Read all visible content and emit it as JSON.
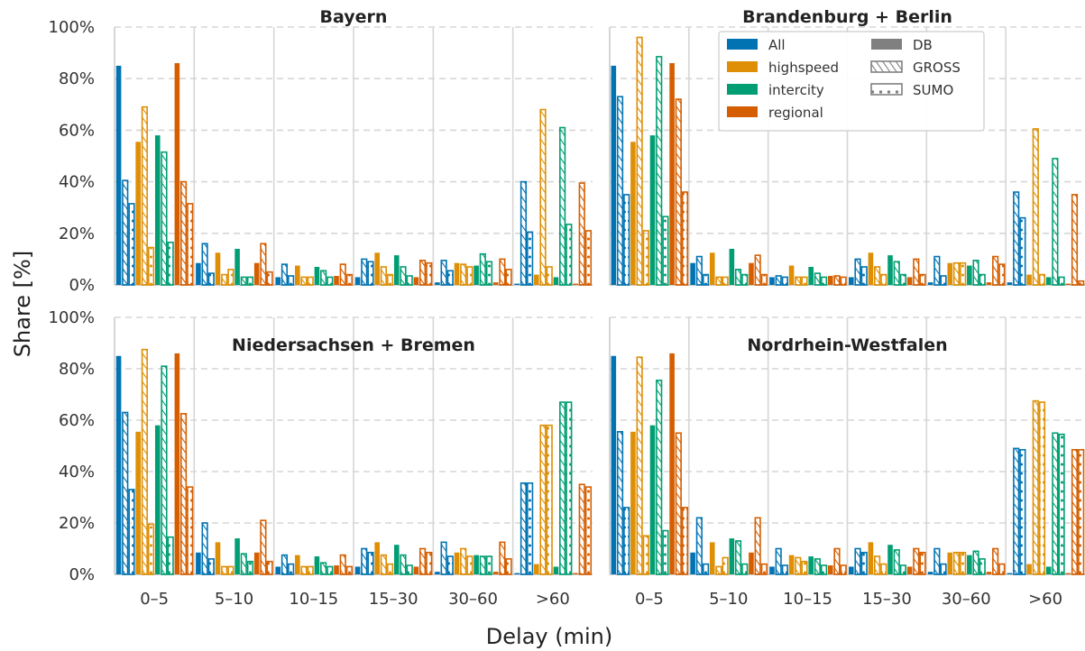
{
  "chart_data": {
    "type": "bar",
    "xlabel": "Delay (min)",
    "ylabel": "Share [%]",
    "ylim": [
      0,
      100
    ],
    "yticks": [
      "0%",
      "20%",
      "40%",
      "60%",
      "80%",
      "100%"
    ],
    "categories": [
      "0–5",
      "5–10",
      "10–15",
      "15–30",
      "30–60",
      ">60"
    ],
    "grid": "dashed horizontal lines, solid vertical lines at category boundaries",
    "train_types": [
      {
        "name": "All",
        "color": "#0173b2"
      },
      {
        "name": "highspeed",
        "color": "#de8f05"
      },
      {
        "name": "intercity",
        "color": "#029e73"
      },
      {
        "name": "regional",
        "color": "#d55e00"
      }
    ],
    "sources": [
      {
        "name": "DB",
        "style": "solid"
      },
      {
        "name": "GROSS",
        "style": "hatched"
      },
      {
        "name": "SUMO",
        "style": "dotted"
      }
    ],
    "legend": {
      "panel": "Brandenburg + Berlin",
      "placement": "top-right"
    },
    "panels": [
      {
        "title": "Bayern",
        "title_position": "top",
        "data": {
          "All": {
            "DB": [
              85,
              8.5,
              3,
              3,
              1,
              0.5
            ],
            "GROSS": [
              40.5,
              16,
              8,
              10,
              9.5,
              40
            ],
            "SUMO": [
              31.5,
              4.5,
              3.5,
              9,
              5.5,
              20.5
            ]
          },
          "highspeed": {
            "DB": [
              55.5,
              12.5,
              7.5,
              12.5,
              8.5,
              4
            ],
            "GROSS": [
              69,
              4,
              3,
              7,
              8,
              68
            ],
            "SUMO": [
              14.5,
              6,
              3,
              4,
              7,
              7
            ]
          },
          "intercity": {
            "DB": [
              58,
              14,
              7,
              11.5,
              7.5,
              3
            ],
            "GROSS": [
              51.5,
              3,
              5.5,
              7,
              12,
              61
            ],
            "SUMO": [
              16.5,
              3,
              3,
              3.5,
              9,
              23.5
            ]
          },
          "regional": {
            "DB": [
              86,
              8.5,
              3.5,
              3,
              1,
              0.5
            ],
            "GROSS": [
              40,
              16,
              8,
              9.5,
              10,
              39.5
            ],
            "SUMO": [
              31.5,
              5,
              4,
              8.5,
              6,
              21
            ]
          }
        }
      },
      {
        "title": "Brandenburg + Berlin",
        "title_position": "top",
        "data": {
          "All": {
            "DB": [
              85,
              8.5,
              3,
              3,
              1,
              1
            ],
            "GROSS": [
              73,
              11,
              3.5,
              10,
              11,
              36
            ],
            "SUMO": [
              35,
              4,
              3,
              7,
              3.5,
              26
            ]
          },
          "highspeed": {
            "DB": [
              55.5,
              12.5,
              7.5,
              12.5,
              8.5,
              4
            ],
            "GROSS": [
              96,
              3,
              3,
              7,
              8.5,
              60.5
            ],
            "SUMO": [
              21,
              3,
              3,
              4,
              8.5,
              4
            ]
          },
          "intercity": {
            "DB": [
              58,
              14,
              7,
              11.5,
              7.5,
              3
            ],
            "GROSS": [
              88.5,
              6,
              4.5,
              9,
              9.5,
              49
            ],
            "SUMO": [
              26.5,
              4,
              3,
              4,
              4,
              3
            ]
          },
          "regional": {
            "DB": [
              86,
              8.5,
              3.5,
              3,
              1,
              0.5
            ],
            "GROSS": [
              72,
              11.5,
              3.5,
              10,
              11,
              35
            ],
            "SUMO": [
              36,
              4,
              3,
              4,
              8,
              1.5
            ]
          }
        }
      },
      {
        "title": "Niedersachsen + Bremen",
        "title_position": "inside",
        "data": {
          "All": {
            "DB": [
              85,
              8.5,
              3,
              3,
              1,
              0.5
            ],
            "GROSS": [
              63,
              20,
              7.5,
              10,
              12.5,
              35.5
            ],
            "SUMO": [
              33,
              6,
              4,
              8.5,
              7,
              35.5
            ]
          },
          "highspeed": {
            "DB": [
              55.5,
              12.5,
              7.5,
              12.5,
              8.5,
              4
            ],
            "GROSS": [
              87.5,
              3,
              3,
              7.5,
              10,
              58
            ],
            "SUMO": [
              19.5,
              3,
              3,
              4,
              7,
              58
            ]
          },
          "intercity": {
            "DB": [
              58,
              14,
              7,
              11.5,
              7.5,
              3
            ],
            "GROSS": [
              81,
              8,
              4.5,
              7.5,
              7,
              67
            ],
            "SUMO": [
              14.5,
              5,
              3,
              3.5,
              7,
              67
            ]
          },
          "regional": {
            "DB": [
              86,
              8.5,
              3.5,
              3,
              1,
              0.5
            ],
            "GROSS": [
              62.5,
              21,
              7.5,
              10,
              12.5,
              35
            ],
            "SUMO": [
              34,
              5,
              3,
              8.5,
              6,
              34
            ]
          }
        }
      },
      {
        "title": "Nordrhein-Westfalen",
        "title_position": "inside",
        "data": {
          "All": {
            "DB": [
              85,
              8.5,
              3,
              3,
              1,
              0.5
            ],
            "GROSS": [
              55.5,
              22,
              10,
              10,
              10,
              49
            ],
            "SUMO": [
              26,
              4,
              3.5,
              8.5,
              4,
              48.5
            ]
          },
          "highspeed": {
            "DB": [
              55.5,
              12.5,
              7.5,
              12.5,
              8.5,
              4
            ],
            "GROSS": [
              84.5,
              3,
              6.5,
              7,
              8.5,
              67.5
            ],
            "SUMO": [
              15,
              6.5,
              5,
              4,
              8.5,
              67
            ]
          },
          "intercity": {
            "DB": [
              58,
              14,
              7,
              11.5,
              7.5,
              3
            ],
            "GROSS": [
              75.5,
              13,
              6,
              9.5,
              9,
              55
            ],
            "SUMO": [
              17,
              4,
              3.5,
              3.5,
              6,
              54.5
            ]
          },
          "regional": {
            "DB": [
              86,
              8.5,
              3.5,
              3,
              1,
              0.5
            ],
            "GROSS": [
              55,
              22,
              10,
              10,
              10,
              48.5
            ],
            "SUMO": [
              26,
              4,
              3.5,
              8.5,
              4,
              48.5
            ]
          }
        }
      }
    ]
  }
}
